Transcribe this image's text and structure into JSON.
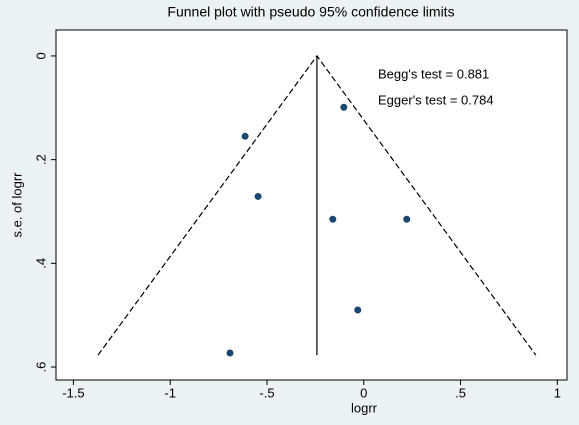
{
  "chart_data": {
    "type": "scatter",
    "title": "Funnel plot with pseudo 95% confidence limits",
    "x_label": "logrr",
    "y_label": "s.e. of logrr",
    "annotations": [
      "Begg's test = 0.881",
      "Egger's test = 0.784"
    ],
    "series": [
      {
        "color": "#1a476f",
        "x": [
          -0.103,
          -0.613,
          -0.546,
          -0.16,
          0.222,
          -0.031,
          -0.691
        ],
        "values": [
          0.099,
          0.155,
          0.271,
          0.315,
          0.315,
          0.49,
          0.573
        ]
      }
    ],
    "lines": [
      {
        "style": "dashed",
        "x": [
          -1.373,
          -0.242,
          0.889
        ],
        "y": [
          0.577,
          0,
          0.577
        ]
      },
      {
        "style": "solid",
        "x": [
          -0.242,
          -0.242
        ],
        "y": [
          0,
          0.577
        ]
      }
    ],
    "xlim": [
      -1.59,
      1.05
    ],
    "xticks": [
      -1.5,
      -1,
      {
        "value": -0.5,
        "label": "-.5"
      },
      0,
      {
        "value": 0.5,
        "label": ".5"
      },
      1
    ],
    "ylim": [
      -0.05,
      0.625
    ],
    "y_reversed": true,
    "yticks": [
      0,
      {
        "value": 0.2,
        "label": ".2"
      },
      {
        "value": 0.4,
        "label": ".4"
      },
      {
        "value": 0.6,
        "label": ".6"
      }
    ]
  }
}
